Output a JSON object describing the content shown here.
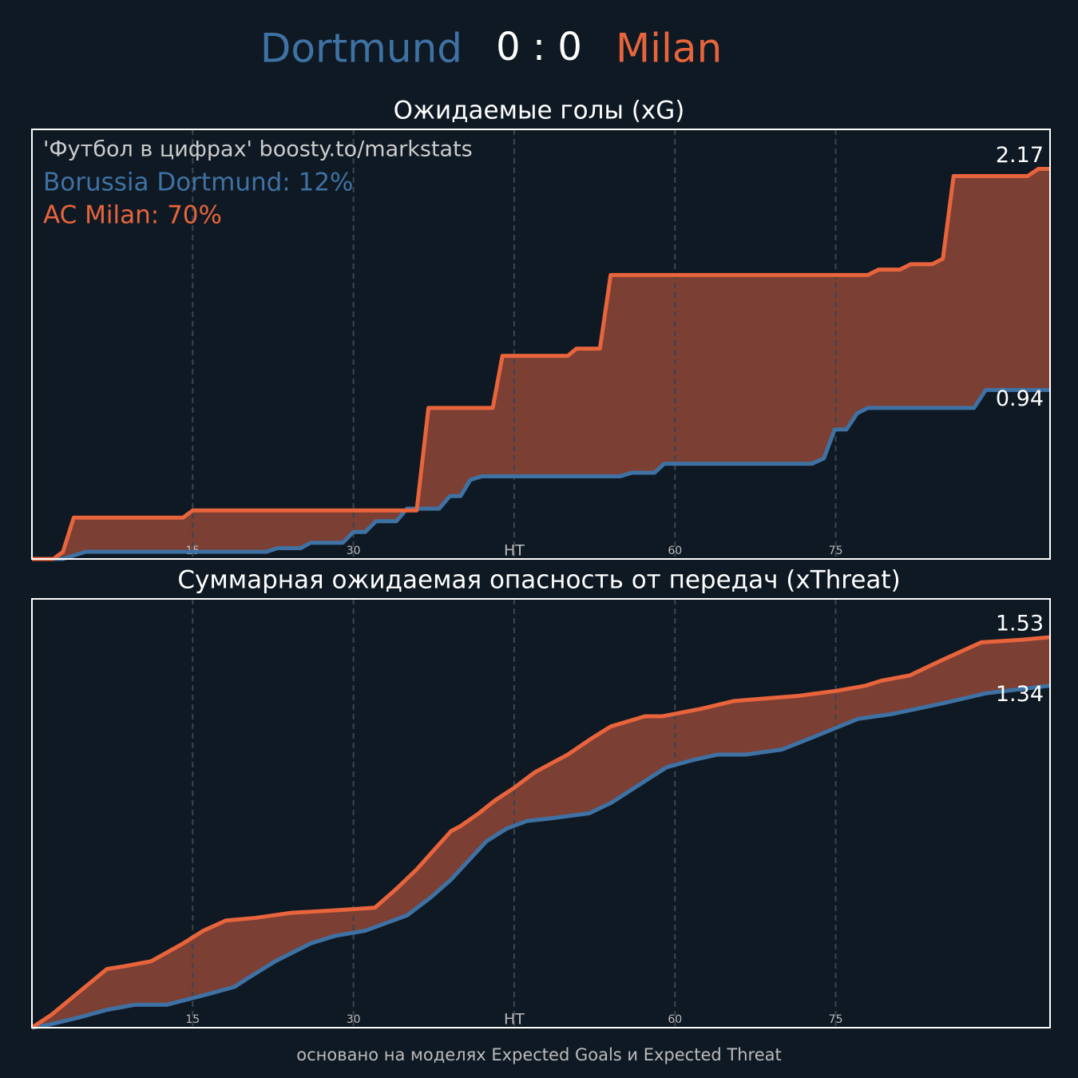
{
  "header": {
    "home": "Dortmund",
    "score": "0 : 0",
    "away": "Milan"
  },
  "footer": "основано на моделях Expected Goals и Expected Threat",
  "chart_data": [
    {
      "type": "line",
      "title": "Ожидаемые голы (xG)",
      "annotations": [
        "'Футбол в цифрах' boosty.to/markstats",
        "Borussia Dortmund: 12%",
        "AC Milan: 70%"
      ],
      "xlim": [
        0,
        95
      ],
      "ylim": [
        0,
        2.39
      ],
      "xticks": [
        15,
        30,
        {
          "value": 45,
          "label": "HT"
        },
        60,
        75
      ],
      "grid": true,
      "fill_between": true,
      "series": [
        {
          "name": "Borussia Dortmund",
          "color": "#3f72a4",
          "x": [
            0,
            2.9,
            5,
            21.9,
            22.9,
            25.1,
            26,
            29,
            30,
            31.1,
            32.1,
            34,
            35,
            38,
            39,
            40,
            40.9,
            42,
            54.9,
            56,
            58.1,
            59,
            72.8,
            73.9,
            74.9,
            76,
            77,
            78,
            87.9,
            89,
            95
          ],
          "values": [
            0,
            0,
            0.04,
            0.04,
            0.06,
            0.06,
            0.09,
            0.09,
            0.15,
            0.15,
            0.21,
            0.21,
            0.28,
            0.28,
            0.35,
            0.35,
            0.44,
            0.46,
            0.46,
            0.48,
            0.48,
            0.53,
            0.53,
            0.56,
            0.72,
            0.72,
            0.81,
            0.84,
            0.84,
            0.94,
            0.94
          ]
        },
        {
          "name": "AC Milan",
          "color": "#e8643c",
          "x": [
            0,
            2,
            2.9,
            3.9,
            14.1,
            15,
            35.9,
            37,
            43,
            43.9,
            50,
            50.8,
            53,
            54,
            78,
            79,
            81,
            82,
            84,
            85,
            86,
            92.9,
            93.9,
            95
          ],
          "values": [
            0,
            0,
            0.04,
            0.23,
            0.23,
            0.27,
            0.27,
            0.84,
            0.84,
            1.13,
            1.13,
            1.17,
            1.17,
            1.58,
            1.58,
            1.61,
            1.61,
            1.64,
            1.64,
            1.67,
            2.13,
            2.13,
            2.17,
            2.17
          ]
        }
      ]
    },
    {
      "type": "line",
      "title": "Суммарная ожидаемая опасность от передач (xThreat)",
      "xlim": [
        0,
        95
      ],
      "ylim": [
        0,
        1.68
      ],
      "xticks": [
        15,
        30,
        {
          "value": 45,
          "label": "HT"
        },
        60,
        75
      ],
      "grid": true,
      "fill_between": true,
      "series": [
        {
          "name": "Borussia Dortmund",
          "color": "#3f72a4",
          "x": [
            0,
            1.4,
            4.4,
            7,
            9.6,
            12.6,
            16.3,
            18.9,
            20,
            22.7,
            26,
            28.3,
            31.1,
            35,
            37.2,
            39.1,
            42.4,
            44.3,
            46.2,
            48.4,
            52,
            54,
            56.6,
            59.2,
            61.8,
            64,
            66.6,
            70,
            73,
            77.1,
            80.4,
            84.9,
            89,
            95
          ],
          "values": [
            0,
            0.01,
            0.04,
            0.07,
            0.09,
            0.09,
            0.13,
            0.16,
            0.19,
            0.26,
            0.33,
            0.36,
            0.38,
            0.44,
            0.51,
            0.58,
            0.73,
            0.78,
            0.81,
            0.82,
            0.84,
            0.88,
            0.95,
            1.02,
            1.05,
            1.07,
            1.07,
            1.09,
            1.14,
            1.21,
            1.23,
            1.27,
            1.31,
            1.34
          ]
        },
        {
          "name": "AC Milan",
          "color": "#e8643c",
          "x": [
            0,
            1.8,
            4.4,
            7,
            8.5,
            11.1,
            14.1,
            16,
            18.1,
            20.8,
            24.2,
            28.3,
            32,
            33.9,
            35.9,
            37.6,
            39.1,
            40,
            41.7,
            43.2,
            45,
            46.9,
            50,
            52.1,
            54,
            57.2,
            58.8,
            62.5,
            65.5,
            68.5,
            71.5,
            75.1,
            77.8,
            79.3,
            81.9,
            84.9,
            88.6,
            92.4,
            95
          ],
          "values": [
            0,
            0.05,
            0.14,
            0.23,
            0.24,
            0.26,
            0.33,
            0.38,
            0.42,
            0.43,
            0.45,
            0.46,
            0.47,
            0.54,
            0.62,
            0.7,
            0.77,
            0.79,
            0.84,
            0.89,
            0.94,
            1.0,
            1.07,
            1.13,
            1.18,
            1.22,
            1.22,
            1.25,
            1.28,
            1.29,
            1.3,
            1.32,
            1.34,
            1.36,
            1.38,
            1.44,
            1.51,
            1.52,
            1.53
          ]
        }
      ]
    }
  ]
}
